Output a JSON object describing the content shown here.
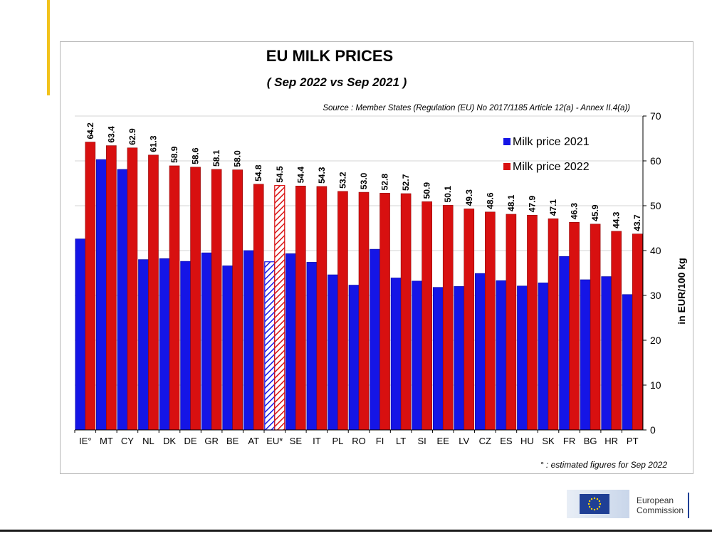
{
  "chart_data": {
    "type": "bar",
    "title": "EU  MILK  PRICES",
    "subtitle": "( Sep 2022   vs   Sep 2021 )",
    "source": "Source : Member States (Regulation (EU) No 2017/1185 Article 12(a) - Annex II.4(a))",
    "footnote": "° : estimated figures for Sep 2022",
    "ylabel": "in EUR/100 kg",
    "ylim": [
      0,
      70
    ],
    "yticks": [
      "0",
      "10",
      "20",
      "30",
      "40",
      "50",
      "60",
      "70"
    ],
    "y_axis_side": "right",
    "legend_position": "top-right",
    "categories": [
      "IE°",
      "MT",
      "CY",
      "NL",
      "DK",
      "DE",
      "GR",
      "BE",
      "AT",
      "EU*",
      "SE",
      "IT",
      "PL",
      "RO",
      "FI",
      "LT",
      "SI",
      "EE",
      "LV",
      "CZ",
      "ES",
      "HU",
      "SK",
      "FR",
      "BG",
      "HR",
      "PT"
    ],
    "highlighted_category": "EU*",
    "series": [
      {
        "name": "Milk price 2021",
        "color": "#1515e6",
        "values": [
          42.6,
          60.3,
          58.1,
          38.0,
          38.2,
          37.6,
          39.5,
          36.6,
          40.0,
          37.5,
          39.3,
          37.4,
          34.6,
          32.3,
          40.3,
          33.9,
          33.2,
          31.8,
          32.0,
          34.9,
          33.3,
          32.1,
          32.8,
          38.7,
          33.5,
          34.2,
          30.2
        ]
      },
      {
        "name": "Milk price 2022",
        "color": "#d81010",
        "values": [
          64.2,
          63.4,
          62.9,
          61.3,
          58.9,
          58.6,
          58.1,
          58.0,
          54.8,
          54.5,
          54.4,
          54.3,
          53.2,
          53.0,
          52.8,
          52.7,
          50.9,
          50.1,
          49.3,
          48.6,
          48.1,
          47.9,
          47.1,
          46.3,
          45.9,
          44.3,
          43.7
        ],
        "value_labels": [
          "64.2",
          "63.4",
          "62.9",
          "61.3",
          "58.9",
          "58.6",
          "58.1",
          "58.0",
          "54.8",
          "54.5",
          "54.4",
          "54.3",
          "53.2",
          "53.0",
          "52.8",
          "52.7",
          "50.9",
          "50.1",
          "49.3",
          "48.6",
          "48.1",
          "47.9",
          "47.1",
          "46.3",
          "45.9",
          "44.3",
          "43.7"
        ]
      }
    ]
  },
  "logo": {
    "line1": "European",
    "line2": "Commission"
  }
}
